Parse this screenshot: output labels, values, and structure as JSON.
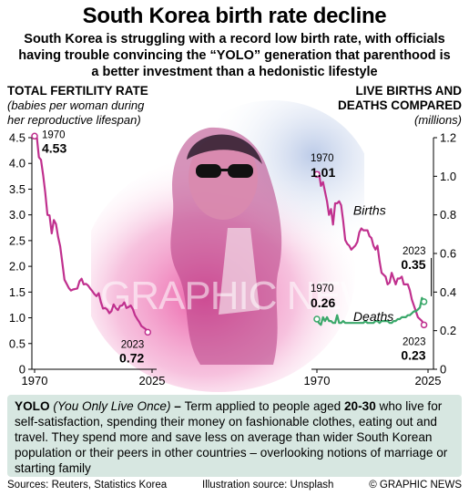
{
  "header": {
    "title": "South Korea birth rate decline",
    "subtitle": "South Korea is struggling with a record low birth rate, with officials having trouble convincing the “YOLO” generation that parenthood is a better investment than a hedonistic lifestyle"
  },
  "colors": {
    "fertility_line": "#c0308e",
    "births_line": "#c0308e",
    "deaths_line": "#3aa86a",
    "info_box": "#d7e7e1"
  },
  "chart_data": [
    {
      "type": "line",
      "title": "TOTAL FERTILITY RATE",
      "subtitle": "(babies per woman during her reproductive lifespan)",
      "xlim": [
        1970,
        2025
      ],
      "ylim": [
        0,
        4.5
      ],
      "x_ticks": [
        "1970",
        "2025"
      ],
      "y_ticks": [
        "0",
        "0.5",
        "1.0",
        "1.5",
        "2.0",
        "2.5",
        "3.0",
        "3.5",
        "4.0",
        "4.5"
      ],
      "grid": false,
      "series": [
        {
          "x": [
            1970,
            1971,
            1972,
            1973,
            1974,
            1975,
            1976,
            1977,
            1978,
            1979,
            1980,
            1981,
            1982,
            1983,
            1984,
            1985,
            1986,
            1987,
            1988,
            1989,
            1990,
            1991,
            1992,
            1993,
            1994,
            1995,
            1996,
            1997,
            1998,
            1999,
            2000,
            2001,
            2002,
            2003,
            2004,
            2005,
            2006,
            2007,
            2008,
            2009,
            2010,
            2011,
            2012,
            2013,
            2014,
            2015,
            2016,
            2017,
            2018,
            2019,
            2020,
            2021,
            2022,
            2023
          ],
          "values": [
            4.53,
            4.54,
            4.12,
            4.07,
            3.77,
            3.43,
            3.0,
            2.99,
            2.64,
            2.9,
            2.82,
            2.57,
            2.39,
            2.06,
            1.74,
            1.66,
            1.58,
            1.53,
            1.55,
            1.56,
            1.57,
            1.71,
            1.76,
            1.65,
            1.66,
            1.63,
            1.57,
            1.52,
            1.46,
            1.42,
            1.48,
            1.31,
            1.18,
            1.19,
            1.16,
            1.09,
            1.13,
            1.26,
            1.19,
            1.15,
            1.23,
            1.24,
            1.3,
            1.19,
            1.21,
            1.24,
            1.17,
            1.05,
            0.98,
            0.92,
            0.84,
            0.81,
            0.78,
            0.72
          ]
        }
      ],
      "annotations": [
        {
          "year": "1970",
          "value": "4.53"
        },
        {
          "year": "2023",
          "value": "0.72"
        }
      ]
    },
    {
      "type": "line",
      "title": "LIVE BIRTHS AND DEATHS COMPARED",
      "subtitle": "(millions)",
      "xlim": [
        1970,
        2025
      ],
      "ylim": [
        0,
        1.2
      ],
      "x_ticks": [
        "1970",
        "2025"
      ],
      "y_ticks": [
        "0",
        "0.2",
        "0.4",
        "0.6",
        "0.8",
        "1.0",
        "1.2"
      ],
      "grid": false,
      "series": [
        {
          "name": "Births",
          "x": [
            1970,
            1971,
            1972,
            1973,
            1974,
            1975,
            1976,
            1977,
            1978,
            1979,
            1980,
            1981,
            1982,
            1983,
            1984,
            1985,
            1986,
            1987,
            1988,
            1989,
            1990,
            1991,
            1992,
            1993,
            1994,
            1995,
            1996,
            1997,
            1998,
            1999,
            2000,
            2001,
            2002,
            2003,
            2004,
            2005,
            2006,
            2007,
            2008,
            2009,
            2010,
            2011,
            2012,
            2013,
            2014,
            2015,
            2016,
            2017,
            2018,
            2019,
            2020,
            2021,
            2022,
            2023
          ],
          "values": [
            1.01,
            1.02,
            0.95,
            0.97,
            0.92,
            0.87,
            0.8,
            0.83,
            0.75,
            0.86,
            0.86,
            0.87,
            0.85,
            0.77,
            0.67,
            0.65,
            0.64,
            0.62,
            0.63,
            0.64,
            0.66,
            0.71,
            0.73,
            0.72,
            0.72,
            0.72,
            0.69,
            0.68,
            0.64,
            0.62,
            0.64,
            0.56,
            0.5,
            0.49,
            0.48,
            0.44,
            0.45,
            0.5,
            0.47,
            0.44,
            0.47,
            0.47,
            0.48,
            0.44,
            0.44,
            0.44,
            0.41,
            0.36,
            0.33,
            0.3,
            0.27,
            0.26,
            0.25,
            0.23
          ]
        },
        {
          "name": "Deaths",
          "x": [
            1970,
            1971,
            1972,
            1973,
            1974,
            1975,
            1976,
            1977,
            1978,
            1979,
            1980,
            1981,
            1982,
            1983,
            1984,
            1985,
            1986,
            1987,
            1988,
            1989,
            1990,
            1991,
            1992,
            1993,
            1994,
            1995,
            1996,
            1997,
            1998,
            1999,
            2000,
            2001,
            2002,
            2003,
            2004,
            2005,
            2006,
            2007,
            2008,
            2009,
            2010,
            2011,
            2012,
            2013,
            2014,
            2015,
            2016,
            2017,
            2018,
            2019,
            2020,
            2021,
            2022,
            2023
          ],
          "values": [
            0.26,
            0.24,
            0.23,
            0.27,
            0.25,
            0.27,
            0.25,
            0.25,
            0.24,
            0.24,
            0.28,
            0.24,
            0.24,
            0.25,
            0.24,
            0.24,
            0.24,
            0.24,
            0.24,
            0.24,
            0.24,
            0.24,
            0.24,
            0.24,
            0.25,
            0.24,
            0.24,
            0.24,
            0.24,
            0.25,
            0.25,
            0.24,
            0.25,
            0.25,
            0.25,
            0.25,
            0.24,
            0.24,
            0.25,
            0.25,
            0.26,
            0.26,
            0.27,
            0.27,
            0.27,
            0.28,
            0.28,
            0.29,
            0.3,
            0.3,
            0.31,
            0.32,
            0.37,
            0.35
          ]
        }
      ],
      "annotations": [
        {
          "year": "1970",
          "value": "1.01",
          "series": "Births"
        },
        {
          "year": "1970",
          "value": "0.26",
          "series": "Deaths"
        },
        {
          "year": "2023",
          "value": "0.35",
          "series": "Deaths"
        },
        {
          "year": "2023",
          "value": "0.23",
          "series": "Births"
        }
      ]
    }
  ],
  "info": {
    "term": "YOLO",
    "term_expansion": "(You Only Live Once)",
    "dash": " – ",
    "text_a": "Term applied to people aged ",
    "age_range": "20-30",
    "text_b": " who live for self-satisfaction, spending their money on fashionable clothes, eating out and travel. They spend more and save less on average than wider South Korean population or their peers in other countries – overlooking notions of marriage or starting family"
  },
  "footer": {
    "sources": "Sources: Reuters, Statistics Korea",
    "illustration": "Illustration source: Unsplash",
    "credit": "© GRAPHIC NEWS"
  },
  "watermark": "GRAPHIC NEWS"
}
